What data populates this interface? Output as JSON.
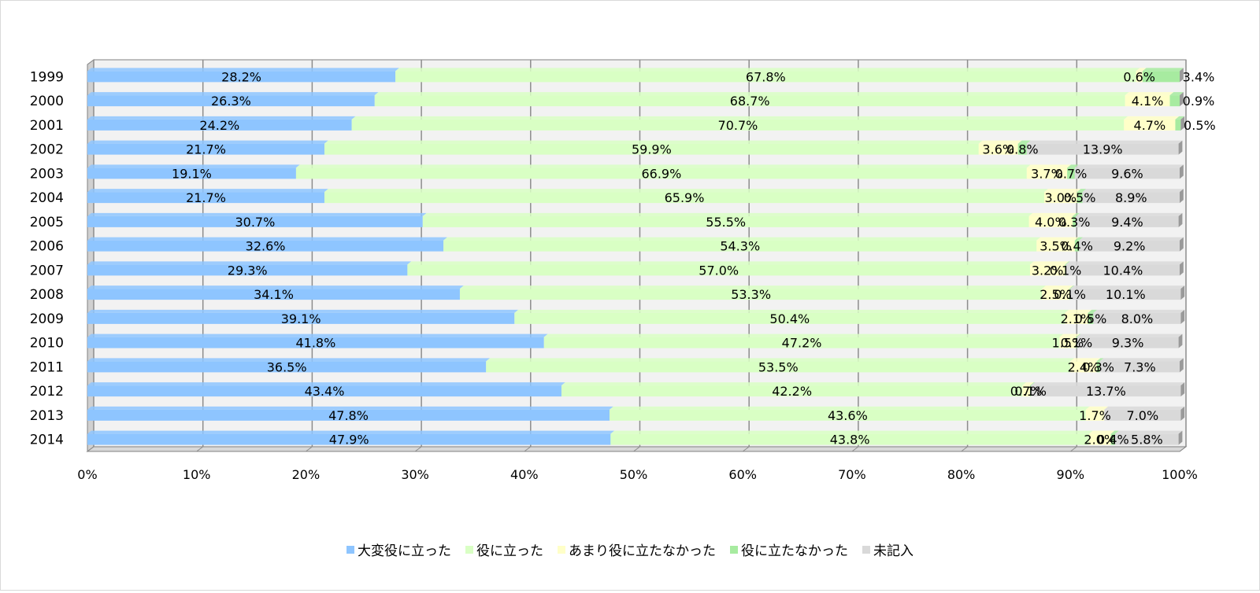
{
  "chart_data": {
    "type": "bar",
    "orientation": "horizontal",
    "stacked": "percent",
    "categories": [
      "1999",
      "2000",
      "2001",
      "2002",
      "2003",
      "2004",
      "2005",
      "2006",
      "2007",
      "2008",
      "2009",
      "2010",
      "2011",
      "2012",
      "2013",
      "2014"
    ],
    "series": [
      {
        "name": "大変役に立った",
        "color": "#8ec5ff",
        "values": [
          28.2,
          26.3,
          24.2,
          21.7,
          19.1,
          21.7,
          30.7,
          32.6,
          29.3,
          34.1,
          39.1,
          41.8,
          36.5,
          43.4,
          47.8,
          47.9
        ],
        "labels": [
          "28.2%",
          "26.3%",
          "24.2%",
          "21.7%",
          "19.1%",
          "21.7%",
          "30.7%",
          "32.6%",
          "29.3%",
          "34.1%",
          "39.1%",
          "41.8%",
          "36.5%",
          "43.4%",
          "47.8%",
          "47.9%"
        ]
      },
      {
        "name": "役に立った",
        "color": "#d9ffc4",
        "values": [
          67.8,
          68.7,
          70.7,
          59.9,
          66.9,
          65.9,
          55.5,
          54.3,
          57.0,
          53.3,
          50.4,
          47.2,
          53.5,
          42.2,
          43.6,
          43.8
        ],
        "labels": [
          "67.8%",
          "68.7%",
          "70.7%",
          "59.9%",
          "66.9%",
          "65.9%",
          "55.5%",
          "54.3%",
          "57.0%",
          "53.3%",
          "50.4%",
          "47.2%",
          "53.5%",
          "42.2%",
          "43.6%",
          "43.8%"
        ]
      },
      {
        "name": "あまり役に立たなかった",
        "color": "#ffffc8",
        "values": [
          0.6,
          4.1,
          4.7,
          3.6,
          3.7,
          3.0,
          4.0,
          3.5,
          3.2,
          2.5,
          2.1,
          1.5,
          2.4,
          0.7,
          1.7,
          2.0
        ],
        "labels": [
          "0.6%",
          "4.1%",
          "4.7%",
          "3.6%",
          "3.7%",
          "3.0%",
          "4.0%",
          "3.5%",
          "3.2%",
          "2.5%",
          "2.1%",
          "1.5%",
          "2.4%",
          "0.7%",
          "1.7%",
          "2.0%"
        ]
      },
      {
        "name": "役に立たなかった",
        "color": "#a7eba0",
        "values": [
          3.4,
          0.9,
          0.5,
          0.8,
          0.7,
          0.5,
          0.3,
          0.4,
          0.1,
          0.1,
          0.5,
          0.1,
          0.3,
          0.1,
          0,
          0.4
        ],
        "labels": [
          "3.4%",
          "0.9%",
          "0.5%",
          "0.8%",
          "0.7%",
          "0.5%",
          "0.3%",
          "0.4%",
          "0.1%",
          "0.1%",
          "0.5%",
          "0.1%",
          "0.3%",
          "0.1%",
          "",
          "0.4%"
        ]
      },
      {
        "name": "未記入",
        "color": "#d9d9d9",
        "values": [
          0,
          0,
          0,
          13.9,
          9.6,
          8.9,
          9.4,
          9.2,
          10.4,
          10.1,
          8.0,
          9.3,
          7.3,
          13.7,
          7.0,
          5.8
        ],
        "labels": [
          "",
          "",
          "",
          "13.9%",
          "9.6%",
          "8.9%",
          "9.4%",
          "9.2%",
          "10.4%",
          "10.1%",
          "8.0%",
          "9.3%",
          "7.3%",
          "13.7%",
          "7.0%",
          "5.8%"
        ]
      }
    ],
    "xaxis": {
      "ticks": [
        "0%",
        "10%",
        "20%",
        "30%",
        "40%",
        "50%",
        "60%",
        "70%",
        "80%",
        "90%",
        "100%"
      ]
    },
    "xlim": [
      0,
      100
    ],
    "grid": true,
    "legend_position": "bottom"
  }
}
